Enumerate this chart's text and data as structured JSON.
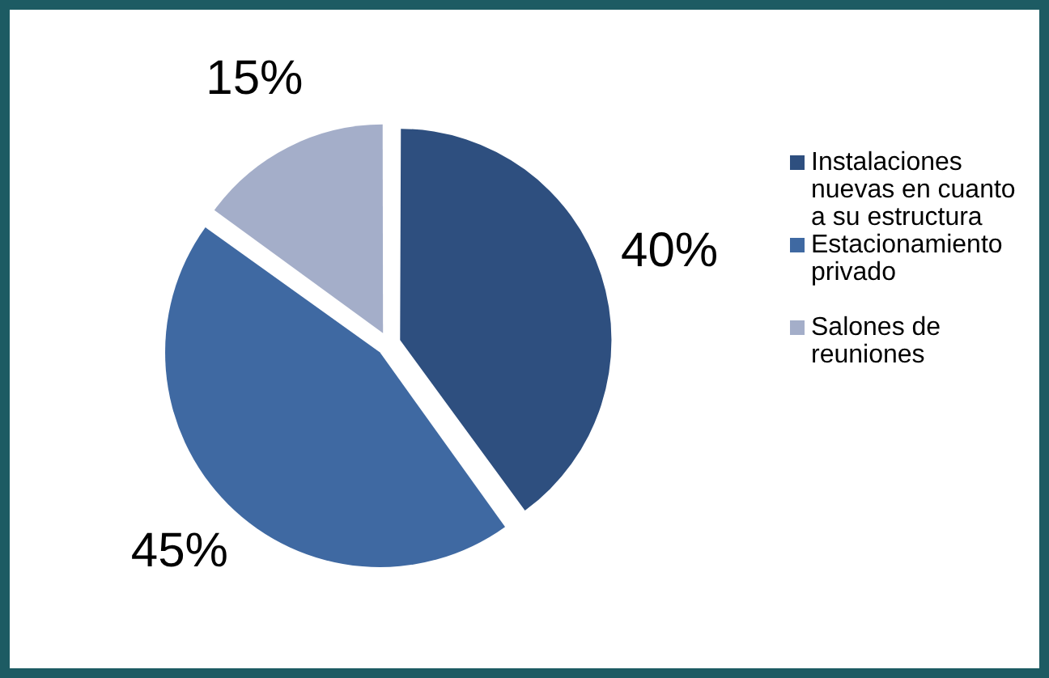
{
  "chart_data": {
    "type": "pie",
    "categories": [
      "Instalaciones nuevas en cuanto a su estructura",
      "Estacionamiento privado",
      "Salones de reuniones"
    ],
    "values": [
      40,
      45,
      15
    ],
    "colors": [
      "#2e4f7f",
      "#3f69a2",
      "#a4aec9"
    ],
    "value_labels": [
      "40%",
      "45%",
      "15%"
    ],
    "legend": "right"
  }
}
